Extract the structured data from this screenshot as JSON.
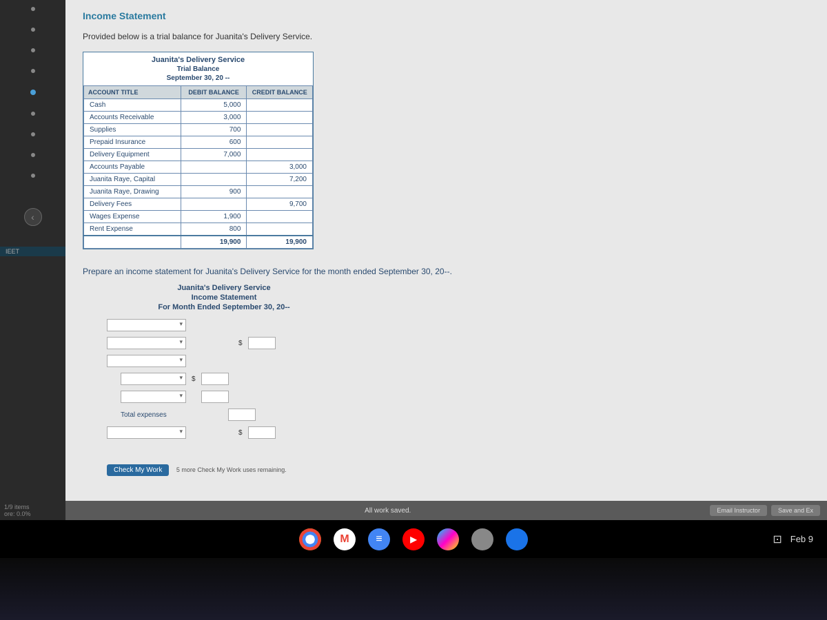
{
  "nav": {
    "section_label": "IEET",
    "items_count": "1/9 items",
    "score": "ore: 0.0%"
  },
  "page": {
    "title": "Income Statement",
    "intro": "Provided below is a trial balance for Juanita's Delivery Service."
  },
  "trial_balance": {
    "company": "Juanita's Delivery Service",
    "report_name": "Trial Balance",
    "date": "September 30, 20 --",
    "columns": [
      "ACCOUNT TITLE",
      "DEBIT BALANCE",
      "CREDIT BALANCE"
    ],
    "rows": [
      {
        "account": "Cash",
        "debit": "5,000",
        "credit": ""
      },
      {
        "account": "Accounts Receivable",
        "debit": "3,000",
        "credit": ""
      },
      {
        "account": "Supplies",
        "debit": "700",
        "credit": ""
      },
      {
        "account": "Prepaid Insurance",
        "debit": "600",
        "credit": ""
      },
      {
        "account": "Delivery Equipment",
        "debit": "7,000",
        "credit": ""
      },
      {
        "account": "Accounts Payable",
        "debit": "",
        "credit": "3,000"
      },
      {
        "account": "Juanita Raye, Capital",
        "debit": "",
        "credit": "7,200"
      },
      {
        "account": "Juanita Raye, Drawing",
        "debit": "900",
        "credit": ""
      },
      {
        "account": "Delivery Fees",
        "debit": "",
        "credit": "9,700"
      },
      {
        "account": "Wages Expense",
        "debit": "1,900",
        "credit": ""
      },
      {
        "account": "Rent Expense",
        "debit": "800",
        "credit": ""
      }
    ],
    "totals": {
      "debit": "19,900",
      "credit": "19,900"
    }
  },
  "instruction": "Prepare an income statement for Juanita's Delivery Service for the month ended September 30, 20--.",
  "income_statement": {
    "company": "Juanita's Delivery Service",
    "report_name": "Income Statement",
    "period": "For Month Ended September 30, 20--",
    "total_expenses_label": "Total expenses"
  },
  "actions": {
    "check_label": "Check My Work",
    "check_hint": "5 more Check My Work uses remaining."
  },
  "footer": {
    "status": "All work saved.",
    "email_btn": "Email Instructor",
    "save_btn": "Save and Ex"
  },
  "system": {
    "date": "Feb 9"
  }
}
